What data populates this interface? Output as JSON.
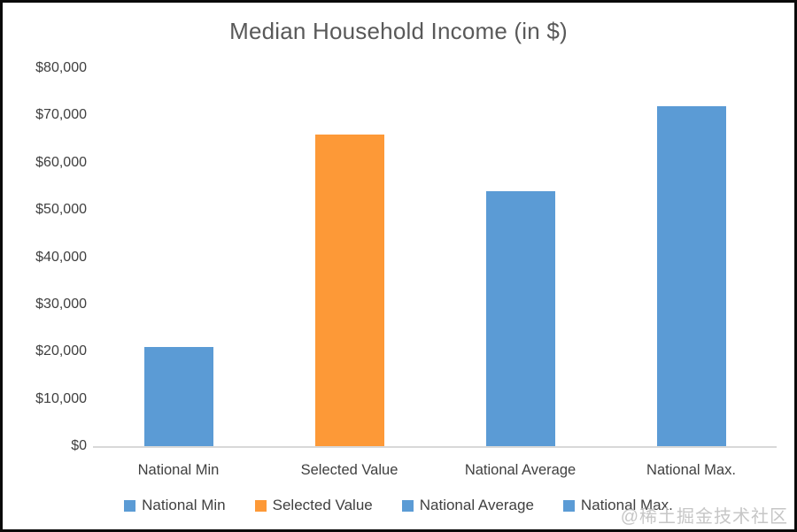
{
  "chart_data": {
    "type": "bar",
    "title": "Median Household Income (in $)",
    "categories": [
      "National Min",
      "Selected Value",
      "National Average",
      "National Max."
    ],
    "values": [
      21000,
      66000,
      54000,
      72000
    ],
    "bar_colors": [
      "#5B9BD5",
      "#FD9937",
      "#5B9BD5",
      "#5B9BD5"
    ],
    "xlabel": "",
    "ylabel": "",
    "ylim": [
      0,
      80000
    ],
    "ytick_step": 10000,
    "ytick_labels": [
      "$0",
      "$10,000",
      "$20,000",
      "$30,000",
      "$40,000",
      "$50,000",
      "$60,000",
      "$70,000",
      "$80,000"
    ],
    "grid": false,
    "legend_position": "bottom",
    "legend": [
      {
        "label": "National Min",
        "color": "#5B9BD5"
      },
      {
        "label": "Selected Value",
        "color": "#FD9937"
      },
      {
        "label": "National Average",
        "color": "#5B9BD5"
      },
      {
        "label": "National Max.",
        "color": "#5B9BD5"
      }
    ]
  },
  "colors": {
    "blue_series": "#5B9BD5",
    "orange_series": "#FD9937",
    "title_text": "#595959",
    "axis_text": "#404040",
    "baseline": "#D8D8D8",
    "frame_border": "#0A0A0A",
    "watermark_text": "#C6C6C6"
  },
  "watermark": "@稀土掘金技术社区"
}
